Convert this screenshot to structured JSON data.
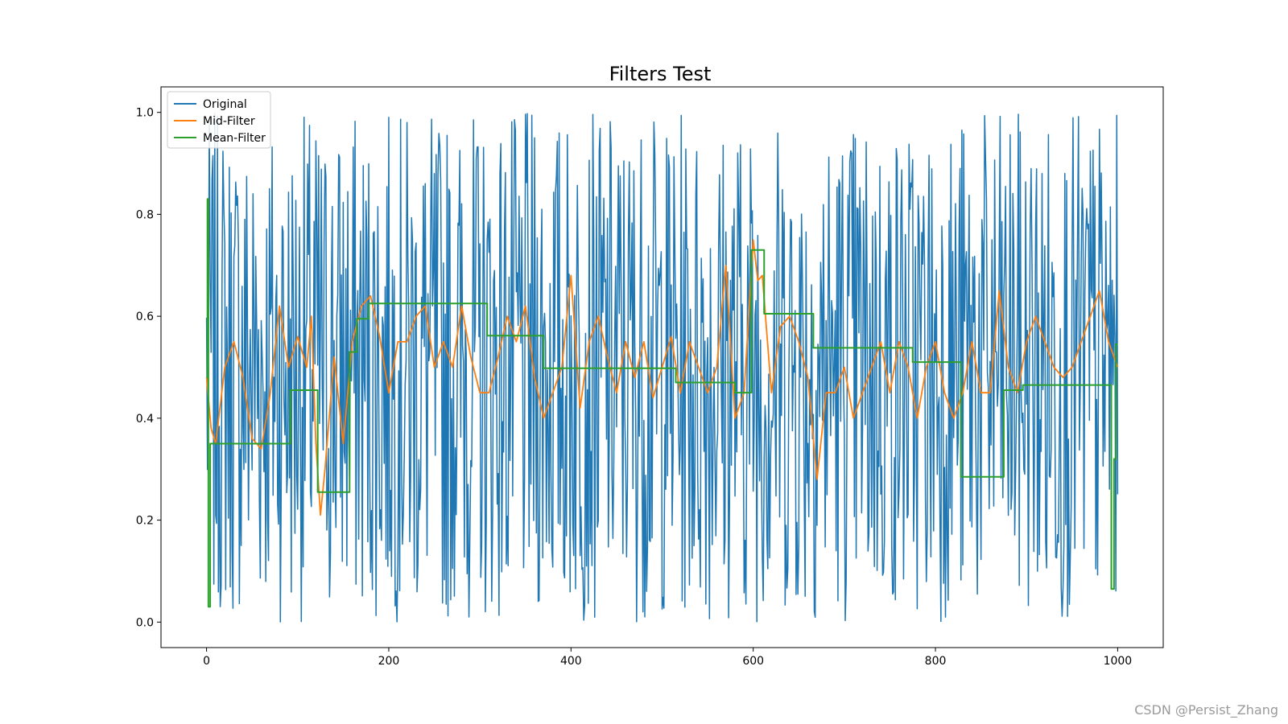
{
  "chart_data": {
    "type": "line",
    "title": "Filters Test",
    "xlabel": "",
    "ylabel": "",
    "xlim": [
      -50,
      1050
    ],
    "ylim": [
      -0.05,
      1.05
    ],
    "xticks": [
      0,
      200,
      400,
      600,
      800,
      1000
    ],
    "xtick_labels": [
      "0",
      "200",
      "400",
      "600",
      "800",
      "1000"
    ],
    "yticks": [
      0.0,
      0.2,
      0.4,
      0.6,
      0.8,
      1.0
    ],
    "ytick_labels": [
      "0.0",
      "0.2",
      "0.4",
      "0.6",
      "0.8",
      "1.0"
    ],
    "grid": false,
    "legend_position": "upper-left",
    "n_points": 1001,
    "series": [
      {
        "name": "Original",
        "color": "#1f77b4",
        "description_values": {
          "min": 0.0,
          "max": 1.0,
          "mean": 0.5,
          "noise_seed": 7
        }
      },
      {
        "name": "Mid-Filter",
        "color": "#ff7f0e",
        "x": [
          0,
          5,
          10,
          20,
          30,
          40,
          50,
          60,
          70,
          80,
          90,
          100,
          110,
          115,
          120,
          125,
          130,
          140,
          150,
          160,
          170,
          180,
          190,
          200,
          210,
          220,
          230,
          240,
          250,
          260,
          270,
          280,
          290,
          300,
          310,
          320,
          330,
          340,
          350,
          360,
          370,
          380,
          390,
          400,
          410,
          420,
          430,
          440,
          450,
          460,
          470,
          480,
          490,
          500,
          510,
          520,
          530,
          540,
          550,
          560,
          570,
          580,
          590,
          600,
          605,
          610,
          620,
          630,
          640,
          650,
          660,
          670,
          680,
          690,
          700,
          710,
          720,
          730,
          740,
          750,
          760,
          770,
          780,
          790,
          800,
          810,
          820,
          830,
          840,
          850,
          860,
          870,
          880,
          890,
          900,
          910,
          920,
          930,
          940,
          950,
          960,
          970,
          980,
          990,
          1000
        ],
        "y": [
          0.48,
          0.38,
          0.35,
          0.5,
          0.55,
          0.48,
          0.36,
          0.34,
          0.45,
          0.62,
          0.5,
          0.56,
          0.5,
          0.6,
          0.35,
          0.21,
          0.3,
          0.52,
          0.35,
          0.55,
          0.62,
          0.64,
          0.56,
          0.45,
          0.55,
          0.55,
          0.6,
          0.62,
          0.5,
          0.55,
          0.5,
          0.62,
          0.52,
          0.45,
          0.45,
          0.52,
          0.6,
          0.55,
          0.62,
          0.48,
          0.4,
          0.45,
          0.5,
          0.68,
          0.42,
          0.55,
          0.6,
          0.52,
          0.45,
          0.55,
          0.48,
          0.55,
          0.44,
          0.5,
          0.56,
          0.45,
          0.55,
          0.5,
          0.45,
          0.5,
          0.7,
          0.4,
          0.45,
          0.75,
          0.67,
          0.68,
          0.45,
          0.58,
          0.6,
          0.55,
          0.48,
          0.28,
          0.45,
          0.45,
          0.5,
          0.4,
          0.45,
          0.5,
          0.55,
          0.45,
          0.55,
          0.5,
          0.4,
          0.5,
          0.55,
          0.45,
          0.4,
          0.45,
          0.55,
          0.45,
          0.45,
          0.65,
          0.5,
          0.45,
          0.55,
          0.6,
          0.55,
          0.5,
          0.48,
          0.5,
          0.55,
          0.6,
          0.65,
          0.55,
          0.5
        ]
      },
      {
        "name": "Mean-Filter",
        "color": "#2ca02c",
        "steps": [
          {
            "x0": 0,
            "x1": 1,
            "y": 0.48
          },
          {
            "x0": 1,
            "x1": 2,
            "y": 0.83
          },
          {
            "x0": 2,
            "x1": 4,
            "y": 0.03
          },
          {
            "x0": 4,
            "x1": 92,
            "y": 0.35
          },
          {
            "x0": 92,
            "x1": 122,
            "y": 0.455
          },
          {
            "x0": 122,
            "x1": 157,
            "y": 0.255
          },
          {
            "x0": 157,
            "x1": 165,
            "y": 0.53
          },
          {
            "x0": 165,
            "x1": 178,
            "y": 0.595
          },
          {
            "x0": 178,
            "x1": 308,
            "y": 0.625
          },
          {
            "x0": 308,
            "x1": 370,
            "y": 0.562
          },
          {
            "x0": 370,
            "x1": 515,
            "y": 0.498
          },
          {
            "x0": 515,
            "x1": 580,
            "y": 0.47
          },
          {
            "x0": 580,
            "x1": 598,
            "y": 0.45
          },
          {
            "x0": 598,
            "x1": 612,
            "y": 0.73
          },
          {
            "x0": 612,
            "x1": 666,
            "y": 0.605
          },
          {
            "x0": 666,
            "x1": 775,
            "y": 0.538
          },
          {
            "x0": 775,
            "x1": 828,
            "y": 0.51
          },
          {
            "x0": 828,
            "x1": 875,
            "y": 0.285
          },
          {
            "x0": 875,
            "x1": 896,
            "y": 0.455
          },
          {
            "x0": 896,
            "x1": 993,
            "y": 0.465
          },
          {
            "x0": 993,
            "x1": 996,
            "y": 0.065
          },
          {
            "x0": 996,
            "x1": 998,
            "y": 0.32
          },
          {
            "x0": 998,
            "x1": 1000,
            "y": 0.545
          }
        ]
      }
    ]
  },
  "watermark": "CSDN @Persist_Zhang"
}
